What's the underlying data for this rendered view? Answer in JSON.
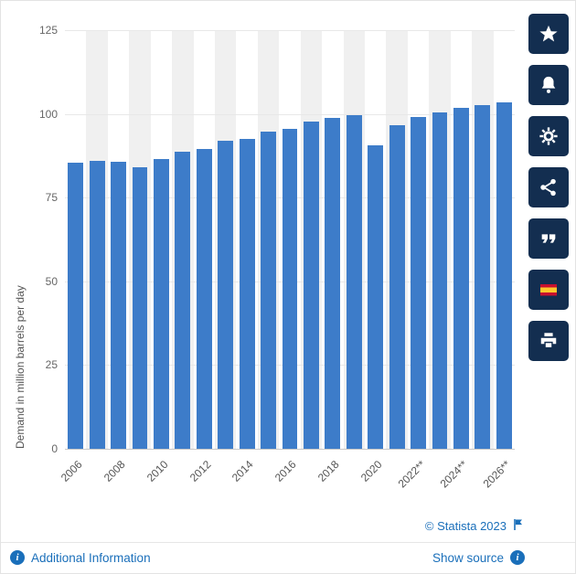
{
  "chart_data": {
    "type": "bar",
    "title": "",
    "ylabel": "Demand in million barrels per day",
    "xlabel": "",
    "ylim": [
      0,
      125
    ],
    "yticks": [
      0,
      25,
      50,
      75,
      100,
      125
    ],
    "categories": [
      "2006",
      "2007",
      "2008",
      "2009",
      "2010",
      "2011",
      "2012",
      "2013",
      "2014",
      "2015",
      "2016",
      "2017",
      "2018",
      "2019",
      "2020",
      "2021",
      "2022**",
      "2023**",
      "2024**",
      "2025**",
      "2026**"
    ],
    "values": [
      85.3,
      86.1,
      85.7,
      84.2,
      86.4,
      88.8,
      89.4,
      91.9,
      92.4,
      94.6,
      95.5,
      97.6,
      98.9,
      99.5,
      90.5,
      96.5,
      99.0,
      100.5,
      101.8,
      102.5,
      103.5
    ],
    "x_tick_every": 2,
    "bar_color": "#3d7cc9",
    "band_color": "#f0f0f0",
    "grid": true,
    "legend": "none"
  },
  "sidebar": {
    "bg_color": "#132e50",
    "buttons": [
      {
        "name": "favorite",
        "icon": "star-icon"
      },
      {
        "name": "notifications",
        "icon": "bell-icon"
      },
      {
        "name": "settings",
        "icon": "gear-icon"
      },
      {
        "name": "share",
        "icon": "share-icon"
      },
      {
        "name": "cite",
        "icon": "quote-icon"
      },
      {
        "name": "language-spanish",
        "icon": "spain-flag-icon"
      },
      {
        "name": "print",
        "icon": "printer-icon"
      }
    ],
    "spain_flag_colors": {
      "red": "#c8102e",
      "yellow": "#ffc72c"
    }
  },
  "footer": {
    "copyright": "© Statista 2023",
    "additional_information_label": "Additional Information",
    "show_source_label": "Show source",
    "link_color": "#1a6fba"
  }
}
